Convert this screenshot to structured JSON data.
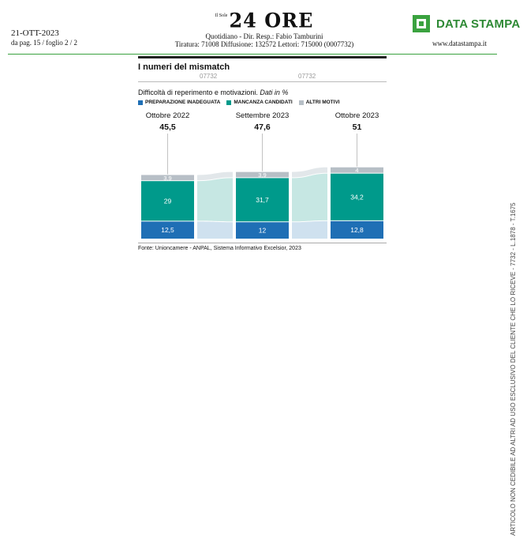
{
  "header": {
    "date": "21-OTT-2023",
    "pages": "da pag.  15 /    foglio 2 / 2",
    "logo_small": "Il Sole",
    "logo_main": "24 ORE",
    "line1": "Quotidiano   -  Dir. Resp.:  Fabio Tamburini",
    "line2": "Tiratura: 71008 Diffusione: 132572 Lettori: 715000 (0007732)",
    "brand": "DATA STAMPA",
    "url": "www.datastampa.it",
    "side_note": "ARTICOLO NON CEDIBILE AD ALTRI AD USO ESCLUSIVO DEL CLIENTE CHE LO RICEVE - 7732 - L.1878 - T.1675"
  },
  "codes": [
    "07732",
    "07732"
  ],
  "chart_data": {
    "type": "bar",
    "title": "I numeri del mismatch",
    "subtitle_plain": "Difficoltà di reperimento e motivazioni. ",
    "subtitle_italic": "Dati in %",
    "categories": [
      "Ottobre 2022",
      "Settembre 2023",
      "Ottobre 2023"
    ],
    "totals": [
      "45,5",
      "47,6",
      "51"
    ],
    "series": [
      {
        "name": "PREPARAZIONE INADEGUATA",
        "values": [
          12.5,
          12,
          12.8
        ],
        "labels": [
          "12,5",
          "12",
          "12,8"
        ],
        "color": "#1f6fb5"
      },
      {
        "name": "MANCANZA CANDIDATI",
        "values": [
          29,
          31.7,
          34.2
        ],
        "labels": [
          "29",
          "31,7",
          "34,2"
        ],
        "color": "#009a8b"
      },
      {
        "name": "ALTRI MOTIVI",
        "values": [
          3.9,
          3.9,
          4
        ],
        "labels": [
          "3,9",
          "3,9",
          "4"
        ],
        "color": "#b7bfc6"
      }
    ],
    "connector_colors": [
      "#cfe1ef",
      "#c6e7e3",
      "#e2e7ea"
    ],
    "source": "Fonte: Unioncamere - ANPAL, Sistema Informativo Excelsior, 2023"
  }
}
